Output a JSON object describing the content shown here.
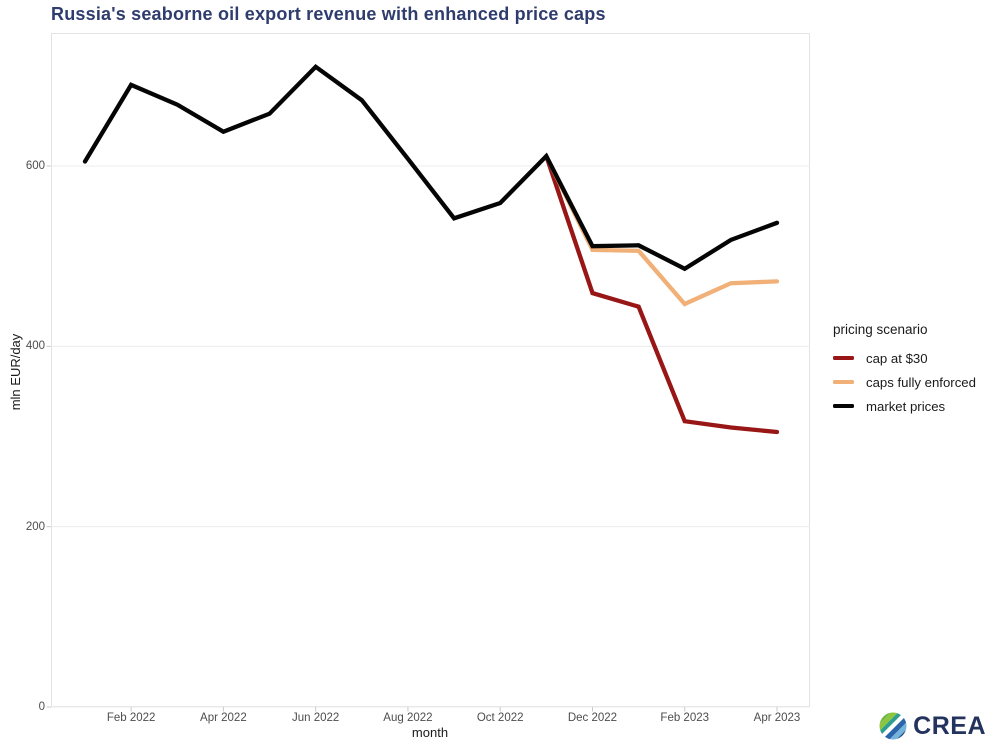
{
  "title": "Russia's seaborne oil export revenue with enhanced price caps",
  "colors": {
    "title": "#2f3c6e",
    "cap30": "#981616",
    "enforced": "#f0b077",
    "market": "#050505",
    "grid": "#ececec",
    "panel_border": "#e3e3e3",
    "tick_mark": "#c9c9c9",
    "tick_label": "#4d4d4d",
    "brand_navy": "#24325e"
  },
  "chart_data": {
    "type": "line",
    "title": "Russia's seaborne oil export revenue with enhanced price caps",
    "xlabel": "month",
    "ylabel": "mln EUR/day",
    "x": [
      "Jan 2022",
      "Feb 2022",
      "Mar 2022",
      "Apr 2022",
      "May 2022",
      "Jun 2022",
      "Jul 2022",
      "Aug 2022",
      "Sep 2022",
      "Oct 2022",
      "Nov 2022",
      "Dec 2022",
      "Jan 2023",
      "Feb 2023",
      "Mar 2023",
      "Apr 2023"
    ],
    "x_tick_indices": [
      1,
      3,
      5,
      7,
      9,
      11,
      13,
      15
    ],
    "x_tick_labels": [
      "Feb 2022",
      "Apr 2022",
      "Jun 2022",
      "Aug 2022",
      "Oct 2022",
      "Dec 2022",
      "Feb 2023",
      "Apr 2023"
    ],
    "y_ticks": [
      0,
      200,
      400,
      600
    ],
    "ylim": [
      0,
      747
    ],
    "grid": "horizontal-only",
    "legend_position": "right",
    "series": [
      {
        "name": "cap at $30",
        "color": "#981616",
        "values": [
          null,
          null,
          null,
          null,
          null,
          null,
          null,
          null,
          null,
          null,
          611,
          459,
          444,
          317,
          310,
          305
        ]
      },
      {
        "name": "caps fully enforced",
        "color": "#f0b077",
        "values": [
          null,
          null,
          null,
          null,
          null,
          null,
          null,
          null,
          null,
          null,
          611,
          507,
          506,
          447,
          470,
          472
        ]
      },
      {
        "name": "market prices",
        "color": "#050505",
        "values": [
          605,
          690,
          668,
          638,
          658,
          710,
          673,
          608,
          542,
          559,
          611,
          511,
          512,
          486,
          518,
          537
        ]
      }
    ]
  },
  "legend": {
    "title": "pricing scenario",
    "items": [
      {
        "label": "cap at $30"
      },
      {
        "label": "caps fully enforced"
      },
      {
        "label": "market prices"
      }
    ]
  },
  "logo": {
    "text": "CREA",
    "icon_colors": [
      "#6fb545",
      "#8cc63e",
      "#2e9e8f",
      "#ffffff",
      "#2a64a9",
      "#74b3dc",
      "#1c4e80"
    ]
  }
}
